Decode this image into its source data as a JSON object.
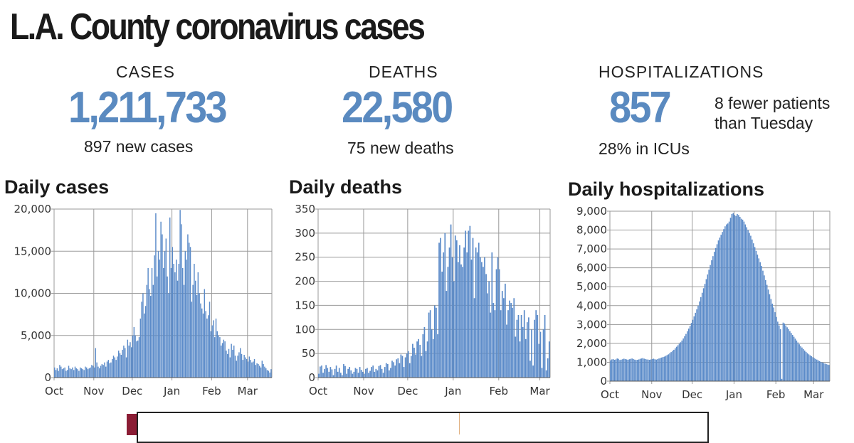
{
  "title": "L.A. County coronavirus cases",
  "stats": {
    "cases": {
      "label": "CASES",
      "value": "1,211,733",
      "sub": "897 new cases"
    },
    "deaths": {
      "label": "DEATHS",
      "value": "22,580",
      "sub": "75 new deaths"
    },
    "hospitalizations": {
      "label": "HOSPITALIZATIONS",
      "value": "857",
      "sub": "28% in ICUs",
      "note": "8 fewer patients than Tuesday"
    }
  },
  "colors": {
    "bar": "#5b8bc9",
    "accent_text": "#5a8ac0",
    "grid": "#9a9a9a"
  },
  "chart_data": [
    {
      "type": "bar",
      "title": "Daily cases",
      "xlabel": "",
      "ylabel": "",
      "x_ticks": [
        "Oct",
        "Nov",
        "Dec",
        "Jan",
        "Feb",
        "Mar"
      ],
      "y_ticks": [
        "0",
        "5,000",
        "10,000",
        "15,000",
        "20,000"
      ],
      "ylim": [
        0,
        20000
      ],
      "grid": true,
      "x_start": "Oct 1",
      "values": [
        1200,
        900,
        1100,
        800,
        1500,
        1300,
        1000,
        1100,
        1200,
        800,
        900,
        1400,
        1100,
        1000,
        1200,
        900,
        1300,
        1100,
        1000,
        800,
        1200,
        1100,
        1000,
        900,
        1300,
        1200,
        1000,
        1100,
        1200,
        1500,
        1400,
        1200,
        3500,
        1800,
        1300,
        1100,
        1400,
        1600,
        1500,
        1800,
        1300,
        1900,
        2100,
        1700,
        1800,
        2200,
        2600,
        2400,
        2100,
        2500,
        3200,
        2900,
        2700,
        3300,
        3800,
        3500,
        2400,
        4500,
        3800,
        4200,
        3600,
        5000,
        6000,
        5000,
        4300,
        4400,
        4800,
        7000,
        9000,
        10000,
        7600,
        8500,
        11000,
        13000,
        10500,
        9700,
        13000,
        11000,
        14500,
        19500,
        12000,
        15000,
        14000,
        18500,
        17000,
        13000,
        15000,
        16500,
        12000,
        10000,
        19000,
        13000,
        15500,
        13500,
        12500,
        14000,
        11500,
        13500,
        19900,
        18200,
        13000,
        11000,
        15000,
        14000,
        17000,
        16000,
        15500,
        9000,
        11000,
        13500,
        11500,
        9800,
        12500,
        10000,
        8800,
        8200,
        7600,
        10500,
        7900,
        7000,
        7400,
        9000,
        5500,
        6200,
        6800,
        4800,
        7000,
        5500,
        5000,
        4800,
        3800,
        4100,
        4500,
        4300,
        3200,
        2800,
        3400,
        2400,
        4000,
        3300,
        3800,
        2600,
        2000,
        2600,
        3000,
        3500,
        2800,
        2100,
        2700,
        2400,
        2200,
        1900,
        2500,
        2100,
        1800,
        1900,
        2200,
        1500,
        1700,
        1600,
        1400,
        1200,
        2000,
        1600,
        1300,
        1100,
        900,
        800,
        600,
        1000
      ]
    },
    {
      "type": "bar",
      "title": "Daily deaths",
      "xlabel": "",
      "ylabel": "",
      "x_ticks": [
        "Oct",
        "Nov",
        "Dec",
        "Jan",
        "Feb",
        "Mar"
      ],
      "y_ticks": [
        "0",
        "50",
        "100",
        "150",
        "200",
        "250",
        "300",
        "350"
      ],
      "ylim": [
        0,
        350
      ],
      "grid": true,
      "x_start": "Oct 1",
      "values": [
        8,
        23,
        25,
        10,
        18,
        26,
        20,
        12,
        22,
        17,
        5,
        18,
        25,
        12,
        20,
        10,
        5,
        28,
        24,
        8,
        18,
        22,
        15,
        8,
        12,
        20,
        18,
        10,
        22,
        16,
        12,
        8,
        18,
        20,
        10,
        14,
        22,
        25,
        12,
        18,
        15,
        24,
        26,
        18,
        10,
        22,
        30,
        28,
        15,
        20,
        35,
        32,
        25,
        38,
        40,
        30,
        48,
        45,
        22,
        42,
        50,
        55,
        30,
        45,
        70,
        62,
        48,
        75,
        80,
        68,
        45,
        90,
        105,
        55,
        75,
        135,
        140,
        100,
        80,
        150,
        145,
        90,
        280,
        290,
        220,
        260,
        300,
        180,
        230,
        270,
        318,
        250,
        200,
        295,
        285,
        240,
        275,
        235,
        230,
        270,
        305,
        260,
        305,
        315,
        245,
        290,
        165,
        270,
        260,
        280,
        250,
        240,
        230,
        250,
        215,
        175,
        200,
        135,
        260,
        155,
        140,
        225,
        250,
        225,
        140,
        180,
        165,
        195,
        110,
        140,
        160,
        155,
        145,
        165,
        85,
        120,
        130,
        75,
        130,
        105,
        140,
        80,
        115,
        125,
        35,
        100,
        25,
        120,
        140,
        130,
        70,
        95,
        20,
        100,
        130,
        15,
        40,
        75
      ]
    },
    {
      "type": "bar",
      "title": "Daily hospitalizations",
      "xlabel": "",
      "ylabel": "",
      "x_ticks": [
        "Oct",
        "Nov",
        "Dec",
        "Jan",
        "Feb",
        "Mar"
      ],
      "y_ticks": [
        "0",
        "1,000",
        "2,000",
        "3,000",
        "4,000",
        "5,000",
        "6,000",
        "7,000",
        "8,000",
        "9,000"
      ],
      "ylim": [
        0,
        9000
      ],
      "grid": true,
      "x_start": "Oct 1",
      "values": [
        1100,
        1150,
        1170,
        1130,
        1150,
        1200,
        1180,
        1120,
        1140,
        1160,
        1190,
        1170,
        1150,
        1130,
        1160,
        1180,
        1200,
        1170,
        1140,
        1120,
        1130,
        1150,
        1180,
        1200,
        1220,
        1190,
        1170,
        1150,
        1140,
        1130,
        1150,
        1170,
        1190,
        1160,
        1140,
        1170,
        1200,
        1230,
        1250,
        1280,
        1300,
        1340,
        1380,
        1420,
        1480,
        1540,
        1600,
        1660,
        1740,
        1820,
        1900,
        1980,
        2060,
        2150,
        2260,
        2380,
        2500,
        2640,
        2780,
        2920,
        3080,
        3250,
        3430,
        3620,
        3800,
        4000,
        4220,
        4450,
        4680,
        4920,
        5150,
        5400,
        5650,
        5900,
        6150,
        6400,
        6620,
        6850,
        7050,
        7250,
        7450,
        7600,
        7750,
        7900,
        8050,
        8200,
        8300,
        8350,
        8450,
        8650,
        8850,
        8900,
        8800,
        8750,
        8850,
        8800,
        8700,
        8600,
        8550,
        8450,
        8300,
        8150,
        8000,
        7850,
        7700,
        7500,
        7300,
        7100,
        6900,
        6700,
        6500,
        6300,
        6100,
        5850,
        5600,
        5350,
        5100,
        4850,
        4600,
        4350,
        4100,
        3900,
        3650,
        3400,
        3150,
        2950,
        2750,
        120,
        3100,
        3050,
        2950,
        2850,
        2750,
        2650,
        2550,
        2450,
        2350,
        2250,
        2150,
        2050,
        1950,
        1850,
        1780,
        1700,
        1620,
        1550,
        1480,
        1420,
        1370,
        1320,
        1270,
        1220,
        1180,
        1140,
        1100,
        1060,
        1020,
        990,
        960,
        930,
        900,
        880,
        860
      ]
    }
  ]
}
